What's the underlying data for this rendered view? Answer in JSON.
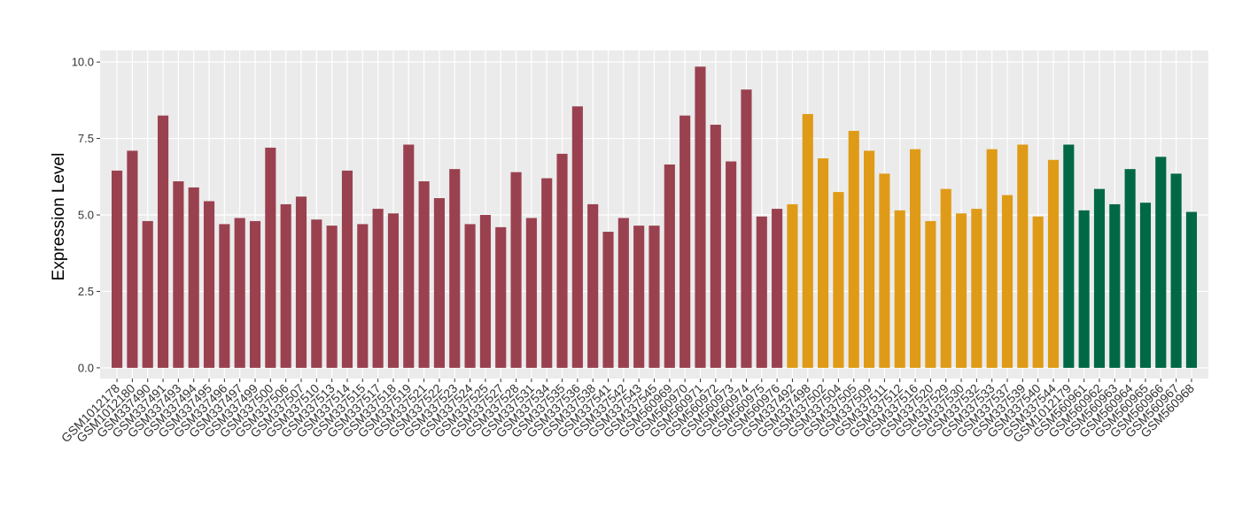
{
  "chart_data": {
    "type": "bar",
    "ylabel": "Expression Level",
    "categories": [
      "GSM1012178",
      "GSM1012180",
      "GSM337490",
      "GSM337491",
      "GSM337493",
      "GSM337494",
      "GSM337495",
      "GSM337496",
      "GSM337497",
      "GSM337499",
      "GSM337500",
      "GSM337506",
      "GSM337507",
      "GSM337510",
      "GSM337513",
      "GSM337514",
      "GSM337515",
      "GSM337517",
      "GSM337518",
      "GSM337519",
      "GSM337521",
      "GSM337522",
      "GSM337523",
      "GSM337524",
      "GSM337525",
      "GSM337527",
      "GSM337528",
      "GSM337531",
      "GSM337534",
      "GSM337535",
      "GSM337536",
      "GSM337538",
      "GSM337541",
      "GSM337542",
      "GSM337543",
      "GSM337545",
      "GSM560969",
      "GSM560970",
      "GSM560971",
      "GSM560972",
      "GSM560973",
      "GSM560974",
      "GSM560975",
      "GSM560976",
      "GSM337492",
      "GSM337498",
      "GSM337502",
      "GSM337504",
      "GSM337505",
      "GSM337509",
      "GSM337511",
      "GSM337512",
      "GSM337516",
      "GSM337520",
      "GSM337529",
      "GSM337530",
      "GSM337532",
      "GSM337533",
      "GSM337537",
      "GSM337539",
      "GSM337540",
      "GSM337544",
      "GSM1012179",
      "GSM560961",
      "GSM560962",
      "GSM560963",
      "GSM560964",
      "GSM560965",
      "GSM560966",
      "GSM560967",
      "GSM560968"
    ],
    "values": [
      6.45,
      7.1,
      4.8,
      8.25,
      6.1,
      5.9,
      5.45,
      4.7,
      4.9,
      4.8,
      7.2,
      5.35,
      5.6,
      4.85,
      4.65,
      6.45,
      4.7,
      5.2,
      5.05,
      7.3,
      6.1,
      5.55,
      6.5,
      4.7,
      5.0,
      4.6,
      6.4,
      4.9,
      6.2,
      7.0,
      8.55,
      5.35,
      4.45,
      4.9,
      4.65,
      4.65,
      6.65,
      8.25,
      9.85,
      7.95,
      6.75,
      9.1,
      4.95,
      5.2,
      5.35,
      8.3,
      6.85,
      5.75,
      7.75,
      7.1,
      6.35,
      5.15,
      7.15,
      4.8,
      5.85,
      5.05,
      5.2,
      7.15,
      5.65,
      7.3,
      4.95,
      6.8,
      7.3,
      5.15,
      5.85,
      5.35,
      6.5,
      5.4,
      6.9,
      6.35,
      5.1
    ],
    "colors": [
      "#9a4150",
      "#9a4150",
      "#9a4150",
      "#9a4150",
      "#9a4150",
      "#9a4150",
      "#9a4150",
      "#9a4150",
      "#9a4150",
      "#9a4150",
      "#9a4150",
      "#9a4150",
      "#9a4150",
      "#9a4150",
      "#9a4150",
      "#9a4150",
      "#9a4150",
      "#9a4150",
      "#9a4150",
      "#9a4150",
      "#9a4150",
      "#9a4150",
      "#9a4150",
      "#9a4150",
      "#9a4150",
      "#9a4150",
      "#9a4150",
      "#9a4150",
      "#9a4150",
      "#9a4150",
      "#9a4150",
      "#9a4150",
      "#9a4150",
      "#9a4150",
      "#9a4150",
      "#9a4150",
      "#9a4150",
      "#9a4150",
      "#9a4150",
      "#9a4150",
      "#9a4150",
      "#9a4150",
      "#9a4150",
      "#9a4150",
      "#df9b17",
      "#df9b17",
      "#df9b17",
      "#df9b17",
      "#df9b17",
      "#df9b17",
      "#df9b17",
      "#df9b17",
      "#df9b17",
      "#df9b17",
      "#df9b17",
      "#df9b17",
      "#df9b17",
      "#df9b17",
      "#df9b17",
      "#df9b17",
      "#df9b17",
      "#df9b17",
      "#006845",
      "#006845",
      "#006845",
      "#006845",
      "#006845",
      "#006845",
      "#006845",
      "#006845",
      "#006845"
    ],
    "ylim": [
      -0.35,
      10.38
    ],
    "yticks": [
      {
        "value": 0,
        "label": "0.0"
      },
      2.5,
      {
        "value": 5,
        "label": "5.0"
      },
      7.5,
      {
        "value": 10,
        "label": "10.0"
      }
    ],
    "grid": true
  }
}
